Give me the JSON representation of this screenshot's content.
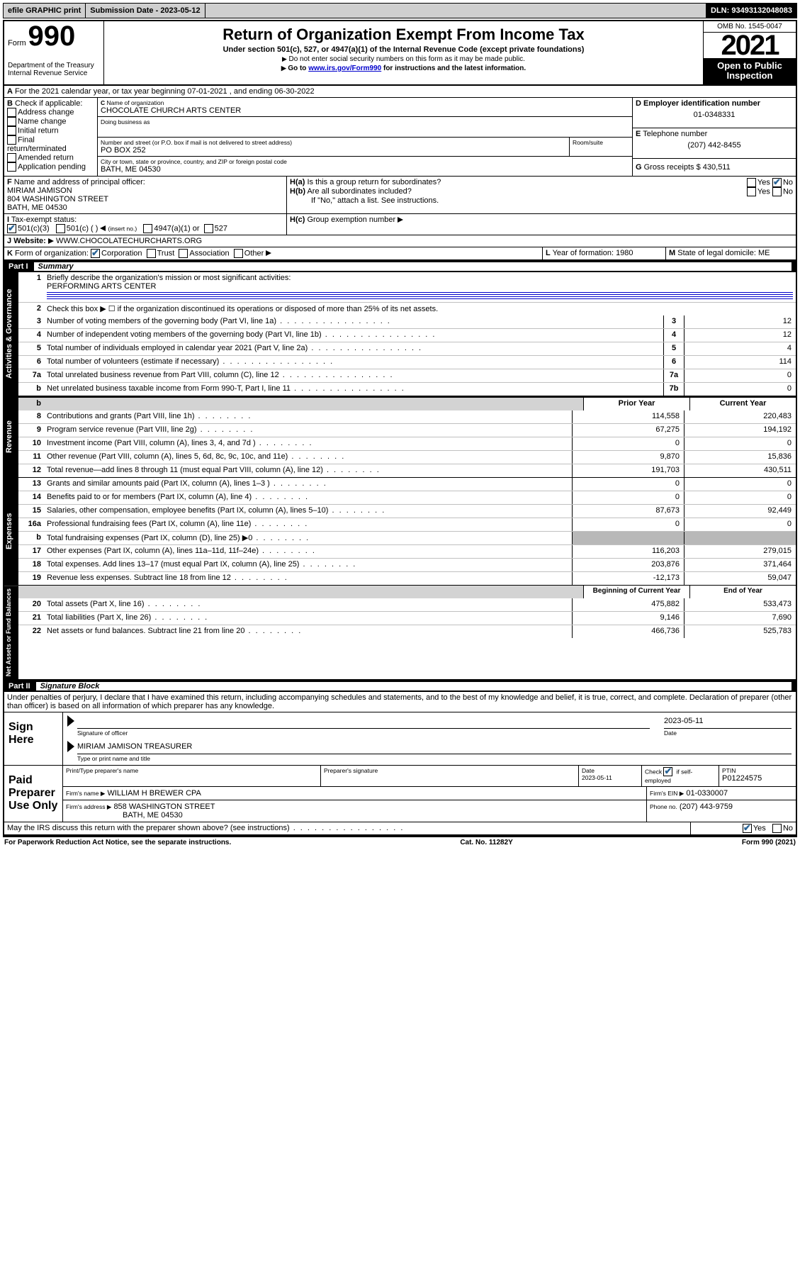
{
  "topbar": {
    "efile": "efile GRAPHIC print",
    "submission_label": "Submission Date - 2023-05-12",
    "dln": "DLN: 93493132048083"
  },
  "header": {
    "form_word": "Form",
    "form_number": "990",
    "dept": "Department of the Treasury",
    "irs": "Internal Revenue Service",
    "title": "Return of Organization Exempt From Income Tax",
    "subtitle": "Under section 501(c), 527, or 4947(a)(1) of the Internal Revenue Code (except private foundations)",
    "note1": "Do not enter social security numbers on this form as it may be made public.",
    "note2_pre": "Go to ",
    "note2_link": "www.irs.gov/Form990",
    "note2_post": " for instructions and the latest information.",
    "omb": "OMB No. 1545-0047",
    "year": "2021",
    "open_public": "Open to Public Inspection"
  },
  "period": {
    "line_a": "For the 2021 calendar year, or tax year beginning 07-01-2021",
    "line_a2": ", and ending 06-30-2022"
  },
  "box_b": {
    "title": "Check if applicable:",
    "items": [
      "Address change",
      "Name change",
      "Initial return",
      "Final return/terminated",
      "Amended return",
      "Application pending"
    ]
  },
  "box_c": {
    "label": "Name of organization",
    "org_name": "CHOCOLATE CHURCH ARTS CENTER",
    "dba_label": "Doing business as",
    "addr_label": "Number and street (or P.O. box if mail is not delivered to street address)",
    "room_label": "Room/suite",
    "addr": "PO BOX 252",
    "city_label": "City or town, state or province, country, and ZIP or foreign postal code",
    "city": "BATH, ME  04530"
  },
  "box_d": {
    "label": "Employer identification number",
    "value": "01-0348331"
  },
  "box_e": {
    "label": "Telephone number",
    "value": "(207) 442-8455"
  },
  "box_g": {
    "label": "Gross receipts $",
    "value": "430,511"
  },
  "box_f": {
    "label": "Name and address of principal officer:",
    "name": "MIRIAM JAMISON",
    "addr1": "804 WASHINGTON STREET",
    "addr2": "BATH, ME  04530"
  },
  "box_h": {
    "ha": "Is this a group return for subordinates?",
    "hb": "Are all subordinates included?",
    "hb_note": "If \"No,\" attach a list. See instructions.",
    "hc": "Group exemption number"
  },
  "tax_status": {
    "label": "Tax-exempt status:",
    "opt1": "501(c)(3)",
    "opt2": "501(c) (  )",
    "opt2_note": "(insert no.)",
    "opt3": "4947(a)(1) or",
    "opt4": "527"
  },
  "website": {
    "label": "Website:",
    "value": "WWW.CHOCOLATECHURCHARTS.ORG"
  },
  "box_k": {
    "label": "Form of organization:",
    "opts": [
      "Corporation",
      "Trust",
      "Association",
      "Other"
    ]
  },
  "box_l": {
    "label": "Year of formation: 1980"
  },
  "box_m": {
    "label": "State of legal domicile: ME"
  },
  "part1": {
    "header_label": "Part I",
    "header_title": "Summary",
    "line1": "Briefly describe the organization's mission or most significant activities:",
    "mission": "PERFORMING ARTS CENTER",
    "line2": "Check this box ▶ ☐  if the organization discontinued its operations or disposed of more than 25% of its net assets.",
    "rows_gov": [
      {
        "n": "3",
        "d": "Number of voting members of the governing body (Part VI, line 1a)",
        "b": "3",
        "v": "12"
      },
      {
        "n": "4",
        "d": "Number of independent voting members of the governing body (Part VI, line 1b)",
        "b": "4",
        "v": "12"
      },
      {
        "n": "5",
        "d": "Total number of individuals employed in calendar year 2021 (Part V, line 2a)",
        "b": "5",
        "v": "4"
      },
      {
        "n": "6",
        "d": "Total number of volunteers (estimate if necessary)",
        "b": "6",
        "v": "114"
      },
      {
        "n": "7a",
        "d": "Total unrelated business revenue from Part VIII, column (C), line 12",
        "b": "7a",
        "v": "0"
      },
      {
        "n": "b",
        "d": "Net unrelated business taxable income from Form 990-T, Part I, line 11",
        "b": "7b",
        "v": "0"
      }
    ],
    "prior_label": "Prior Year",
    "current_label": "Current Year",
    "rows_rev": [
      {
        "n": "8",
        "d": "Contributions and grants (Part VIII, line 1h)",
        "p": "114,558",
        "c": "220,483"
      },
      {
        "n": "9",
        "d": "Program service revenue (Part VIII, line 2g)",
        "p": "67,275",
        "c": "194,192"
      },
      {
        "n": "10",
        "d": "Investment income (Part VIII, column (A), lines 3, 4, and 7d )",
        "p": "0",
        "c": "0"
      },
      {
        "n": "11",
        "d": "Other revenue (Part VIII, column (A), lines 5, 6d, 8c, 9c, 10c, and 11e)",
        "p": "9,870",
        "c": "15,836"
      },
      {
        "n": "12",
        "d": "Total revenue—add lines 8 through 11 (must equal Part VIII, column (A), line 12)",
        "p": "191,703",
        "c": "430,511"
      }
    ],
    "rows_exp": [
      {
        "n": "13",
        "d": "Grants and similar amounts paid (Part IX, column (A), lines 1–3 )",
        "p": "0",
        "c": "0"
      },
      {
        "n": "14",
        "d": "Benefits paid to or for members (Part IX, column (A), line 4)",
        "p": "0",
        "c": "0"
      },
      {
        "n": "15",
        "d": "Salaries, other compensation, employee benefits (Part IX, column (A), lines 5–10)",
        "p": "87,673",
        "c": "92,449"
      },
      {
        "n": "16a",
        "d": "Professional fundraising fees (Part IX, column (A), line 11e)",
        "p": "0",
        "c": "0"
      },
      {
        "n": "b",
        "d": "Total fundraising expenses (Part IX, column (D), line 25) ▶0",
        "p": "",
        "c": "",
        "shade": true
      },
      {
        "n": "17",
        "d": "Other expenses (Part IX, column (A), lines 11a–11d, 11f–24e)",
        "p": "116,203",
        "c": "279,015"
      },
      {
        "n": "18",
        "d": "Total expenses. Add lines 13–17 (must equal Part IX, column (A), line 25)",
        "p": "203,876",
        "c": "371,464"
      },
      {
        "n": "19",
        "d": "Revenue less expenses. Subtract line 18 from line 12",
        "p": "-12,173",
        "c": "59,047"
      }
    ],
    "begin_label": "Beginning of Current Year",
    "end_label": "End of Year",
    "rows_net": [
      {
        "n": "20",
        "d": "Total assets (Part X, line 16)",
        "p": "475,882",
        "c": "533,473"
      },
      {
        "n": "21",
        "d": "Total liabilities (Part X, line 26)",
        "p": "9,146",
        "c": "7,690"
      },
      {
        "n": "22",
        "d": "Net assets or fund balances. Subtract line 21 from line 20",
        "p": "466,736",
        "c": "525,783"
      }
    ],
    "tabs": {
      "gov": "Activities & Governance",
      "rev": "Revenue",
      "exp": "Expenses",
      "net": "Net Assets or Fund Balances"
    }
  },
  "part2": {
    "header_label": "Part II",
    "header_title": "Signature Block",
    "penalty": "Under penalties of perjury, I declare that I have examined this return, including accompanying schedules and statements, and to the best of my knowledge and belief, it is true, correct, and complete. Declaration of preparer (other than officer) is based on all information of which preparer has any knowledge.",
    "sign_here": "Sign Here",
    "sig_officer": "Signature of officer",
    "sig_date": "2023-05-11",
    "date_label": "Date",
    "officer_name": "MIRIAM JAMISON TREASURER",
    "type_label": "Type or print name and title",
    "paid_label": "Paid Preparer Use Only",
    "col_print": "Print/Type preparer's name",
    "col_sig": "Preparer's signature",
    "col_date": "Date",
    "col_date_val": "2023-05-11",
    "col_check": "Check ",
    "col_check2": " if self-employed",
    "col_ptin": "PTIN",
    "ptin_val": "P01224575",
    "firm_name_label": "Firm's name  ▶",
    "firm_name": "WILLIAM H BREWER CPA",
    "firm_ein_label": "Firm's EIN ▶",
    "firm_ein": "01-0330007",
    "firm_addr_label": "Firm's address ▶",
    "firm_addr": "858 WASHINGTON STREET",
    "firm_city": "BATH, ME  04530",
    "phone_label": "Phone no.",
    "phone": "(207) 443-9759",
    "discuss": "May the IRS discuss this return with the preparer shown above? (see instructions)"
  },
  "footer": {
    "left": "For Paperwork Reduction Act Notice, see the separate instructions.",
    "mid": "Cat. No. 11282Y",
    "right": "Form 990 (2021)"
  },
  "yesno": {
    "yes": "Yes",
    "no": "No"
  },
  "letters": {
    "A": "A",
    "B": "B",
    "C": "C",
    "D": "D",
    "E": "E",
    "F": "F",
    "G": "G",
    "H_a": "H(a)",
    "H_b": "H(b)",
    "H_c": "H(c)",
    "I": "I",
    "J": "J",
    "K": "K",
    "L": "L",
    "M": "M"
  }
}
